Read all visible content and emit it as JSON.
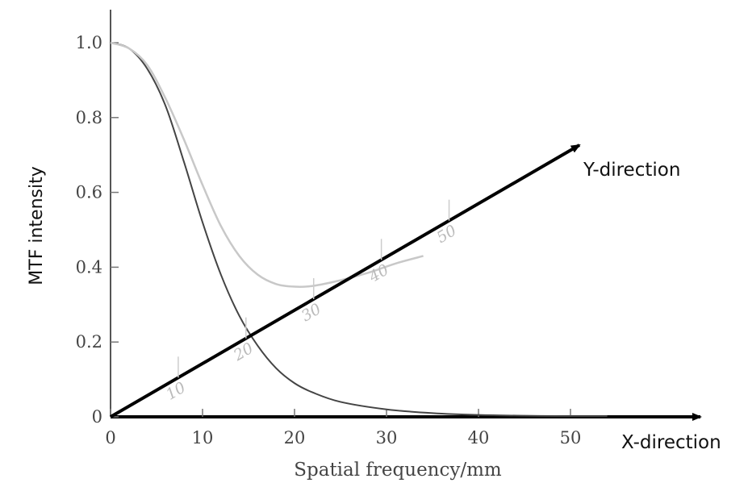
{
  "chart_data": {
    "type": "line",
    "title": "",
    "xlabel": "Spatial frequency/mm",
    "ylabel": "MTF  intensity",
    "xlim": [
      0,
      54
    ],
    "ylim": [
      0,
      1.08
    ],
    "x_ticks": [
      "0",
      "10",
      "20",
      "30",
      "40",
      "50"
    ],
    "y_ticks": [
      "0",
      "0.2",
      "0.4",
      "0.6",
      "0.8",
      "1.0"
    ],
    "x_axis_arrow_label": "X-direction",
    "y_axis_arrow_label": "Y-direction",
    "y_direction_ticks": [
      "10",
      "20",
      "30",
      "40",
      "50"
    ],
    "grid": false,
    "series": [
      {
        "color": "#444444",
        "x": [
          0,
          2,
          4,
          6,
          8,
          10,
          12,
          14,
          16,
          18,
          20,
          22,
          25,
          30,
          35,
          40,
          45,
          50,
          54
        ],
        "values": [
          1.0,
          0.985,
          0.93,
          0.83,
          0.68,
          0.52,
          0.38,
          0.27,
          0.19,
          0.13,
          0.09,
          0.065,
          0.04,
          0.02,
          0.01,
          0.005,
          0.003,
          0.002,
          0.002
        ]
      },
      {
        "color": "#c8c8c8",
        "x": [
          0,
          2,
          4,
          6,
          8,
          10,
          12,
          14,
          16,
          18,
          20,
          22,
          25,
          28,
          31,
          34
        ],
        "values": [
          1.0,
          0.985,
          0.94,
          0.85,
          0.74,
          0.62,
          0.51,
          0.43,
          0.38,
          0.355,
          0.348,
          0.35,
          0.365,
          0.385,
          0.41,
          0.43
        ]
      }
    ],
    "y_direction_axis": {
      "color": "#000000",
      "tick_color": "#cccccc"
    }
  }
}
